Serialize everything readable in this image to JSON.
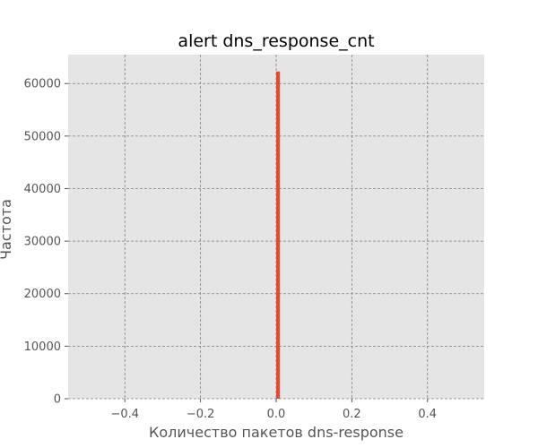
{
  "chart_data": {
    "type": "bar",
    "title": "alert dns_response_cnt",
    "xlabel": "Количество пакетов dns-response",
    "ylabel": "Частота",
    "xlim": [
      -0.55,
      0.55
    ],
    "ylim": [
      0,
      65500
    ],
    "xticks": [
      -0.4,
      -0.2,
      0.0,
      0.2,
      0.4
    ],
    "xtick_labels": [
      "−0.4",
      "−0.2",
      "0.0",
      "0.2",
      "0.4"
    ],
    "yticks": [
      0,
      10000,
      20000,
      30000,
      40000,
      50000,
      60000
    ],
    "ytick_labels": [
      "0",
      "10000",
      "20000",
      "30000",
      "40000",
      "50000",
      "60000"
    ],
    "bars": [
      {
        "x_start": 0.0,
        "x_end": 0.01,
        "value": 62300
      }
    ],
    "grid": true,
    "background_color": "#e5e5e5",
    "bar_color": "#e24a33",
    "grid_color": "#808080"
  }
}
